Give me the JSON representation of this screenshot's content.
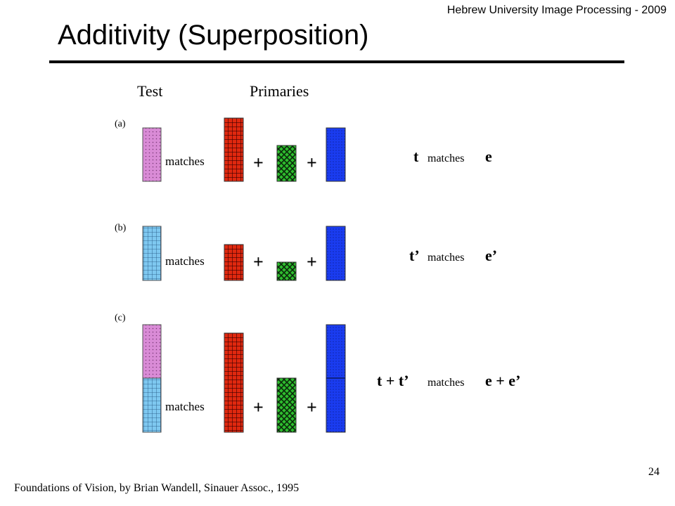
{
  "header": {
    "note": "Hebrew University Image Processing - 2009"
  },
  "slide": {
    "title": "Additivity (Superposition)",
    "number": "24",
    "citation": "Foundations of Vision, by Brian Wandell, Sinauer Assoc., 1995"
  },
  "figure": {
    "column_test": "Test",
    "column_primaries": "Primaries",
    "plus": "+",
    "matches_word": "matches",
    "rows": [
      {
        "label": "(a)",
        "left": "t",
        "right": "e"
      },
      {
        "label": "(b)",
        "left": "t’",
        "right": "e’"
      },
      {
        "label": "(c)",
        "left": "t + t’",
        "right": "e + e’"
      }
    ],
    "colors": {
      "test_t": "#d98bd6",
      "test_t_prime": "#7ec8f0",
      "red_primary": "#e0280f",
      "green_primary": "#2ebd2e",
      "blue_primary": "#1a3cf0"
    }
  }
}
